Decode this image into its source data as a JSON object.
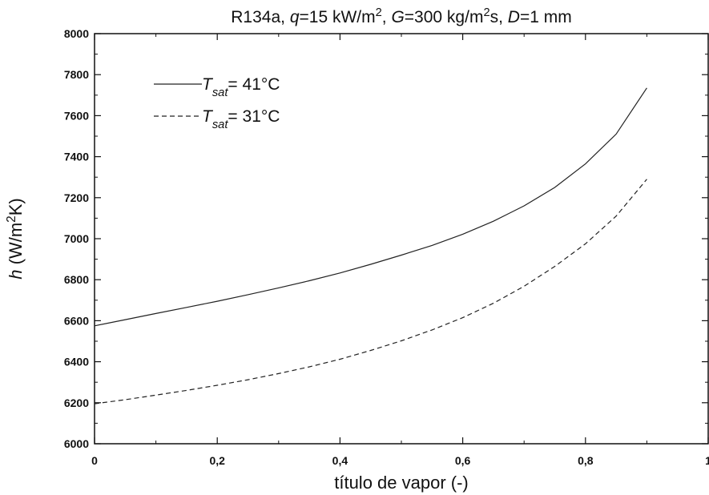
{
  "chart_data": {
    "type": "line",
    "title": {
      "parts": [
        {
          "text": "R134a, "
        },
        {
          "text": "q",
          "italic": true
        },
        {
          "text": "=15 kW/m"
        },
        {
          "text": "2",
          "sup": true
        },
        {
          "text": ", "
        },
        {
          "text": "G",
          "italic": true
        },
        {
          "text": "=300 kg/m"
        },
        {
          "text": "2",
          "sup": true
        },
        {
          "text": "s, "
        },
        {
          "text": "D",
          "italic": true
        },
        {
          "text": "=1 mm"
        }
      ]
    },
    "xlabel": "título de vapor (-)",
    "ylabel": {
      "parts": [
        {
          "text": "h",
          "italic": true
        },
        {
          "text": " (W/m"
        },
        {
          "text": "2",
          "sup": true
        },
        {
          "text": "K)"
        }
      ]
    },
    "xlim": [
      0,
      1
    ],
    "ylim": [
      6000,
      8000
    ],
    "xticks": [
      "0",
      "0,2",
      "0,4",
      "0,6",
      "0,8",
      "1"
    ],
    "yticks": [
      "6000",
      "6200",
      "6400",
      "6600",
      "6800",
      "7000",
      "7200",
      "7400",
      "7600",
      "7800",
      "8000"
    ],
    "grid": false,
    "legend_position": "top-left",
    "series": [
      {
        "name": "Tsat= 41°C",
        "legend_parts": [
          {
            "text": "T",
            "italic": true
          },
          {
            "text": "sat",
            "italic": true,
            "sub": true
          },
          {
            "text": "= 41°C"
          }
        ],
        "line_style": "solid",
        "color": "#222222",
        "x": [
          0,
          0.05,
          0.1,
          0.15,
          0.2,
          0.25,
          0.3,
          0.35,
          0.4,
          0.45,
          0.5,
          0.55,
          0.6,
          0.65,
          0.7,
          0.75,
          0.8,
          0.85,
          0.9
        ],
        "y": [
          6575,
          6605,
          6635,
          6665,
          6695,
          6727,
          6760,
          6795,
          6833,
          6875,
          6920,
          6967,
          7022,
          7085,
          7160,
          7250,
          7365,
          7510,
          7735
        ]
      },
      {
        "name": "Tsat= 31°C",
        "legend_parts": [
          {
            "text": "T",
            "italic": true
          },
          {
            "text": "sat",
            "italic": true,
            "sub": true
          },
          {
            "text": "= 31°C"
          }
        ],
        "line_style": "dashed",
        "color": "#222222",
        "x": [
          0,
          0.05,
          0.1,
          0.15,
          0.2,
          0.25,
          0.3,
          0.35,
          0.4,
          0.45,
          0.5,
          0.55,
          0.6,
          0.65,
          0.7,
          0.75,
          0.8,
          0.85,
          0.9
        ],
        "y": [
          6195,
          6215,
          6237,
          6260,
          6285,
          6312,
          6342,
          6375,
          6412,
          6455,
          6502,
          6555,
          6615,
          6685,
          6768,
          6865,
          6975,
          7110,
          7290
        ]
      }
    ]
  }
}
